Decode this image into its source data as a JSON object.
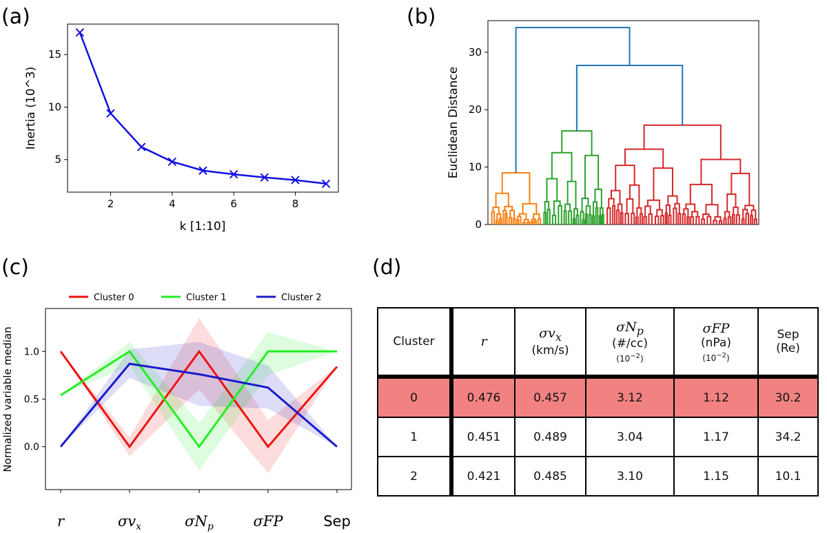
{
  "panel_labels": {
    "a": "(a)",
    "b": "(b)",
    "c": "(c)",
    "d": "(d)"
  },
  "colors": {
    "elbow": "#1010e0",
    "dendro_top": "#1f77b4",
    "dendro_orange": "#ff7f0e",
    "dendro_green": "#2ca02c",
    "dendro_red": "#d62728",
    "cluster0": "#ee1111",
    "cluster1": "#22ee22",
    "cluster2": "#1a1acc",
    "highlight": "#f28282"
  },
  "chart_data": [
    {
      "id": "a",
      "type": "line",
      "xlabel": "k [1:10]",
      "ylabel": "Inertia (10^3)",
      "x": [
        1,
        2,
        3,
        4,
        5,
        6,
        7,
        8,
        9
      ],
      "y": [
        17.1,
        9.4,
        6.2,
        4.8,
        3.95,
        3.6,
        3.3,
        3.05,
        2.7
      ],
      "xlim": [
        0.6,
        9.4
      ],
      "ylim": [
        1.9,
        17.9
      ],
      "xticks": [
        2,
        4,
        6,
        8
      ],
      "yticks": [
        5,
        10,
        15
      ],
      "marker": "x"
    },
    {
      "id": "b",
      "type": "dendrogram",
      "ylabel": "Euclidean Distance",
      "yticks": [
        0,
        10,
        20,
        30
      ],
      "ylim": [
        0,
        35.5
      ],
      "merges": [
        {
          "label": "root",
          "height": 34.3
        },
        {
          "label": "green+red",
          "height": 27.7
        },
        {
          "label": "red",
          "height": 17.3
        },
        {
          "label": "green",
          "height": 16.3
        },
        {
          "label": "orange",
          "height": 9.0
        }
      ]
    },
    {
      "id": "c",
      "type": "line",
      "ylabel": "Normalized variable median",
      "categories": [
        "r",
        "σv_x",
        "σN_p",
        "σFP",
        "Sep"
      ],
      "yticks": [
        0.0,
        0.5,
        1.0
      ],
      "ylim": [
        -0.45,
        1.45
      ],
      "series": [
        {
          "name": "Cluster 0",
          "values": [
            1.0,
            0.0,
            1.0,
            0.0,
            0.84
          ],
          "lower": [
            1.0,
            -0.1,
            0.6,
            -0.28,
            0.84
          ],
          "upper": [
            1.0,
            0.1,
            1.35,
            0.28,
            0.84
          ]
        },
        {
          "name": "Cluster 1",
          "values": [
            0.54,
            1.0,
            0.0,
            1.0,
            1.0
          ],
          "lower": [
            0.54,
            0.85,
            -0.25,
            0.75,
            1.0
          ],
          "upper": [
            0.54,
            1.1,
            0.25,
            1.2,
            1.0
          ]
        },
        {
          "name": "Cluster 2",
          "values": [
            0.0,
            0.87,
            0.76,
            0.62,
            0.0
          ],
          "lower": [
            0.0,
            0.72,
            0.43,
            0.4,
            0.0
          ],
          "upper": [
            0.0,
            1.02,
            1.1,
            0.85,
            0.0
          ]
        }
      ]
    },
    {
      "id": "d",
      "type": "table",
      "headers": [
        {
          "name": "Cluster"
        },
        {
          "sym": "r"
        },
        {
          "sym": "σv",
          "sub": "x",
          "unit": "(km/s)"
        },
        {
          "sym": "σN",
          "sub": "p",
          "unit": "(#/cc)",
          "scale": "(10",
          "scale_exp": "−2",
          "scale_end": ")"
        },
        {
          "sym": "σFP",
          "unit": "(nPa)",
          "scale": "(10",
          "scale_exp": "−2",
          "scale_end": ")"
        },
        {
          "name": "Sep",
          "unit": "(Re)"
        }
      ],
      "rows": [
        [
          "0",
          "0.476",
          "0.457",
          "3.12",
          "1.12",
          "30.2"
        ],
        [
          "1",
          "0.451",
          "0.489",
          "3.04",
          "1.17",
          "34.2"
        ],
        [
          "2",
          "0.421",
          "0.485",
          "3.10",
          "1.15",
          "10.1"
        ]
      ],
      "highlight_row": 0
    }
  ]
}
